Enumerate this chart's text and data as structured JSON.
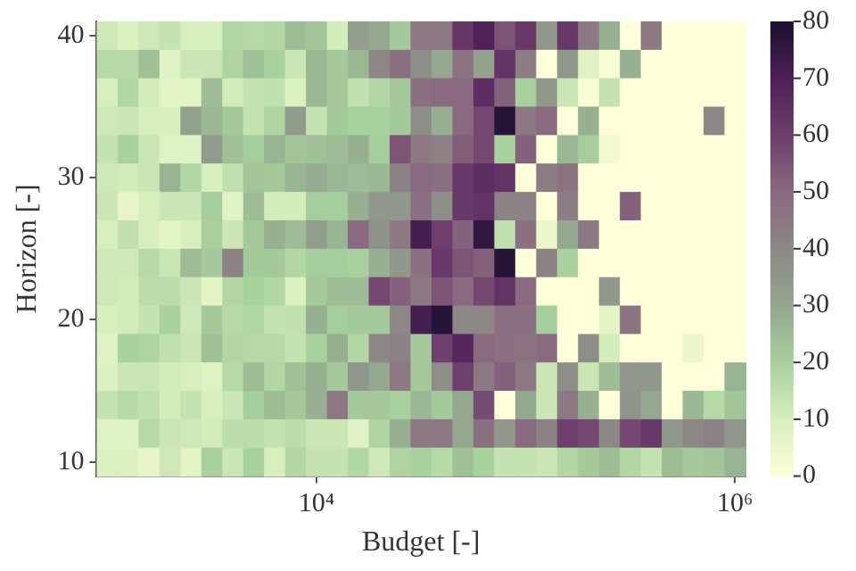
{
  "chart_data": {
    "type": "heatmap",
    "xlabel": "Budget [-]",
    "ylabel": "Horizon [-]",
    "categories": [
      null,
      null,
      null,
      null,
      null,
      null,
      null,
      null,
      null,
      null,
      "10⁴",
      null,
      null,
      null,
      null,
      null,
      null,
      null,
      null,
      null,
      null,
      null,
      null,
      null,
      null,
      null,
      null,
      null,
      null,
      null,
      "10⁶"
    ],
    "y_categories": [
      "40",
      null,
      null,
      null,
      null,
      "30",
      null,
      null,
      null,
      null,
      "20",
      null,
      null,
      null,
      null,
      "10"
    ],
    "clim": [
      0,
      80
    ],
    "cticks": [
      0,
      10,
      20,
      30,
      40,
      50,
      60,
      70,
      80
    ],
    "cells": [
      [
        12,
        9,
        12,
        14,
        10,
        10,
        18,
        17,
        18,
        25,
        23,
        11,
        33,
        30,
        22,
        45,
        45,
        63,
        70,
        55,
        62,
        35,
        62,
        45,
        28,
        0,
        45,
        0,
        0,
        0,
        0
      ],
      [
        17,
        17,
        24,
        8,
        13,
        13,
        19,
        24,
        20,
        13,
        26,
        22,
        26,
        40,
        48,
        38,
        30,
        47,
        32,
        64,
        44,
        0,
        35,
        8,
        2,
        28,
        0,
        0,
        0,
        0,
        0
      ],
      [
        10,
        18,
        11,
        7,
        7,
        25,
        11,
        14,
        15,
        9,
        26,
        22,
        15,
        18,
        22,
        48,
        50,
        50,
        66,
        52,
        20,
        35,
        13,
        2,
        14,
        0,
        0,
        0,
        0,
        0,
        0
      ],
      [
        12,
        13,
        10,
        10,
        32,
        26,
        22,
        14,
        19,
        34,
        14,
        22,
        20,
        20,
        22,
        38,
        28,
        50,
        58,
        78,
        45,
        50,
        0,
        28,
        0,
        0,
        0,
        0,
        0,
        40,
        0
      ],
      [
        14,
        20,
        13,
        8,
        8,
        34,
        24,
        21,
        27,
        23,
        24,
        25,
        28,
        21,
        55,
        45,
        42,
        53,
        58,
        20,
        52,
        0,
        26,
        21,
        3,
        0,
        0,
        0,
        0,
        0,
        0
      ],
      [
        12,
        11,
        13,
        27,
        18,
        10,
        15,
        23,
        22,
        27,
        29,
        26,
        25,
        26,
        42,
        50,
        48,
        62,
        66,
        64,
        0,
        44,
        47,
        0,
        0,
        0,
        0,
        0,
        0,
        0,
        0
      ],
      [
        13,
        6,
        10,
        13,
        13,
        21,
        8,
        25,
        11,
        11,
        21,
        21,
        28,
        35,
        35,
        48,
        38,
        62,
        64,
        42,
        42,
        0,
        44,
        0,
        0,
        52,
        0,
        0,
        0,
        0,
        0
      ],
      [
        10,
        15,
        10,
        7,
        10,
        20,
        13,
        22,
        28,
        25,
        33,
        27,
        50,
        37,
        45,
        72,
        60,
        52,
        76,
        15,
        48,
        5,
        30,
        45,
        0,
        0,
        0,
        0,
        0,
        0,
        0
      ],
      [
        12,
        12,
        17,
        13,
        25,
        22,
        42,
        22,
        22,
        18,
        21,
        21,
        20,
        28,
        35,
        48,
        62,
        55,
        52,
        78,
        0,
        42,
        20,
        0,
        0,
        0,
        0,
        0,
        0,
        0,
        0
      ],
      [
        12,
        11,
        16,
        16,
        13,
        7,
        18,
        20,
        18,
        9,
        22,
        25,
        25,
        58,
        52,
        45,
        55,
        50,
        58,
        64,
        50,
        0,
        0,
        0,
        35,
        0,
        0,
        0,
        0,
        0,
        0
      ],
      [
        10,
        11,
        14,
        20,
        12,
        22,
        17,
        18,
        14,
        15,
        28,
        21,
        22,
        22,
        40,
        72,
        78,
        40,
        40,
        48,
        48,
        21,
        0,
        0,
        7,
        47,
        0,
        0,
        0,
        0,
        0
      ],
      [
        8,
        20,
        19,
        15,
        13,
        24,
        18,
        17,
        17,
        14,
        20,
        28,
        18,
        40,
        42,
        22,
        60,
        68,
        50,
        48,
        47,
        50,
        0,
        38,
        11,
        0,
        0,
        0,
        5,
        0,
        0
      ],
      [
        9,
        13,
        13,
        11,
        10,
        8,
        17,
        25,
        18,
        24,
        28,
        22,
        35,
        30,
        45,
        22,
        38,
        60,
        45,
        52,
        45,
        13,
        38,
        13,
        25,
        35,
        35,
        0,
        0,
        0,
        27
      ],
      [
        14,
        17,
        15,
        11,
        14,
        10,
        13,
        21,
        25,
        22,
        28,
        45,
        22,
        22,
        20,
        26,
        22,
        30,
        57,
        0,
        30,
        13,
        45,
        28,
        0,
        36,
        30,
        0,
        26,
        17,
        23
      ],
      [
        8,
        8,
        17,
        13,
        12,
        11,
        16,
        16,
        14,
        16,
        13,
        13,
        8,
        19,
        28,
        45,
        45,
        30,
        48,
        35,
        50,
        42,
        60,
        58,
        40,
        58,
        62,
        35,
        40,
        42,
        35
      ],
      [
        9,
        9,
        6,
        12,
        7,
        20,
        13,
        20,
        10,
        18,
        14,
        14,
        18,
        12,
        19,
        20,
        17,
        24,
        20,
        14,
        14,
        13,
        18,
        22,
        25,
        18,
        14,
        25,
        22,
        23,
        27
      ]
    ]
  }
}
